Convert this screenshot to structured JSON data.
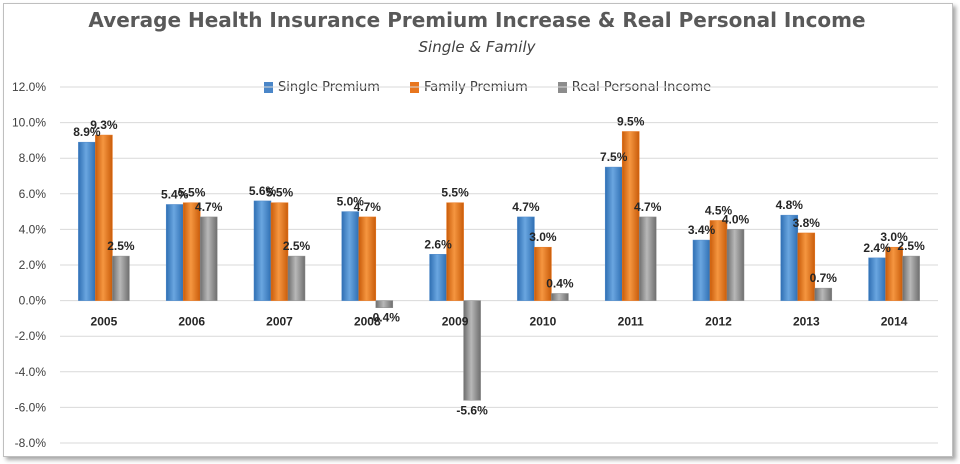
{
  "chart_data": {
    "type": "bar",
    "title": "Average Health Insurance Premium Increase & Real Personal Income",
    "subtitle": "Single & Family",
    "categories": [
      "2005",
      "2006",
      "2007",
      "2008",
      "2009",
      "2010",
      "2011",
      "2012",
      "2013",
      "2014"
    ],
    "series": [
      {
        "name": "Single Premium",
        "color": "#4a86c8",
        "values": [
          8.9,
          5.4,
          5.6,
          5.0,
          2.6,
          4.7,
          7.5,
          3.4,
          4.8,
          2.4
        ],
        "labels": [
          "8.9%",
          "5.4%",
          "5.6%",
          "5.0%",
          "2.6%",
          "4.7%",
          "7.5%",
          "3.4%",
          "4.8%",
          "2.4%"
        ]
      },
      {
        "name": "Family Premium",
        "color": "#e8761e",
        "values": [
          9.3,
          5.5,
          5.5,
          4.7,
          5.5,
          3.0,
          9.5,
          4.5,
          3.8,
          3.0
        ],
        "labels": [
          "9.3%",
          "5.5%",
          "5.5%",
          "4.7%",
          "5.5%",
          "3.0%",
          "9.5%",
          "4.5%",
          "3.8%",
          "3.0%"
        ]
      },
      {
        "name": "Real Personal Income",
        "color": "#8c8c8c",
        "values": [
          2.5,
          4.7,
          2.5,
          -0.4,
          -5.6,
          0.4,
          4.7,
          4.0,
          0.7,
          2.5
        ],
        "labels": [
          "2.5%",
          "4.7%",
          "2.5%",
          "-0.4%",
          "-5.6%",
          "0.4%",
          "4.7%",
          "4.0%",
          "0.7%",
          "2.5%"
        ]
      }
    ],
    "ylim": [
      -8,
      12
    ],
    "yticks": [
      12,
      10,
      8,
      6,
      4,
      2,
      0,
      -2,
      -4,
      -6,
      -8
    ],
    "ytick_labels": [
      "12.0%",
      "10.0%",
      "8.0%",
      "6.0%",
      "4.0%",
      "2.0%",
      "0.0%",
      "-2.0%",
      "-4.0%",
      "-6.0%",
      "-8.0%"
    ],
    "grid": true,
    "legend_position": "top"
  }
}
